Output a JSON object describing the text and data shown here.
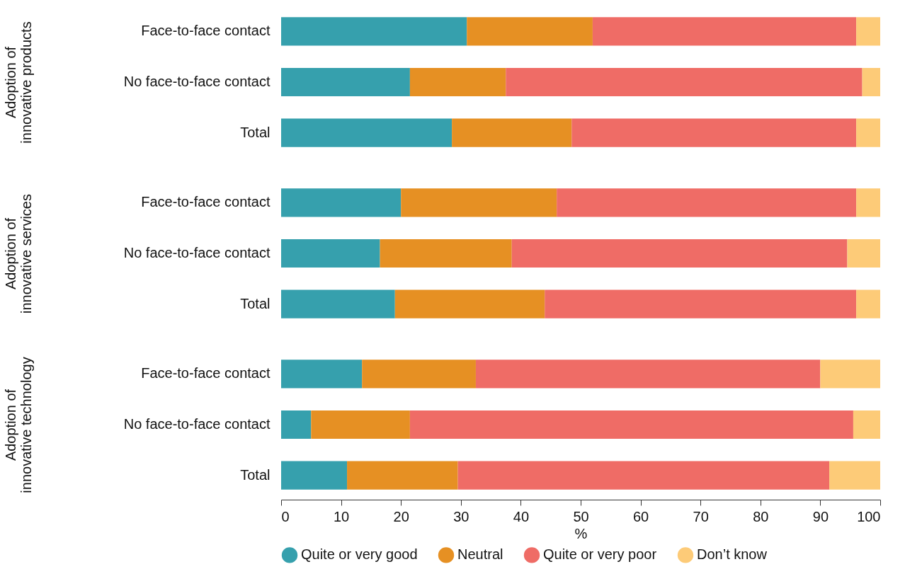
{
  "chart_data": [
    {
      "type": "bar",
      "orientation": "horizontal",
      "stacked": true,
      "ylabel": "Adoption of innovative products",
      "categories": [
        "Face-to-face contact",
        "No face-to-face contact",
        "Total"
      ],
      "xlim": [
        0,
        100
      ],
      "tick_labels": "y",
      "legend": "bottom",
      "series": [
        {
          "name": "Quite or very good",
          "color": "#36a0ad",
          "values": [
            31,
            21.5,
            28.5
          ]
        },
        {
          "name": "Neutral",
          "color": "#e69023",
          "values": [
            21,
            16,
            20
          ]
        },
        {
          "name": "Quite or very poor",
          "color": "#ef6c66",
          "values": [
            44,
            59.5,
            47.5
          ]
        },
        {
          "name": "Don’t know",
          "color": "#fdcb78",
          "values": [
            4,
            3,
            4
          ]
        }
      ]
    },
    {
      "type": "bar",
      "orientation": "horizontal",
      "stacked": true,
      "ylabel": "Adoption of innovative services",
      "categories": [
        "Face-to-face contact",
        "No face-to-face contact",
        "Total"
      ],
      "xlim": [
        0,
        100
      ],
      "tick_labels": "y",
      "series": [
        {
          "name": "Quite or very good",
          "color": "#36a0ad",
          "values": [
            20,
            16.5,
            19
          ]
        },
        {
          "name": "Neutral",
          "color": "#e69023",
          "values": [
            26,
            22,
            25
          ]
        },
        {
          "name": "Quite or very poor",
          "color": "#ef6c66",
          "values": [
            50,
            56,
            52
          ]
        },
        {
          "name": "Don’t know",
          "color": "#fdcb78",
          "values": [
            4,
            5.5,
            4
          ]
        }
      ]
    },
    {
      "type": "bar",
      "orientation": "horizontal",
      "stacked": true,
      "ylabel": "Adoption of innovative technology",
      "xlabel": "%",
      "categories": [
        "Face-to-face contact",
        "No face-to-face contact",
        "Total"
      ],
      "xlim": [
        0,
        100
      ],
      "xticks": [
        0,
        10,
        20,
        30,
        40,
        50,
        60,
        70,
        80,
        90,
        100
      ],
      "series": [
        {
          "name": "Quite or very good",
          "color": "#36a0ad",
          "values": [
            13.5,
            5,
            11
          ]
        },
        {
          "name": "Neutral",
          "color": "#e69023",
          "values": [
            19,
            16.5,
            18.5
          ]
        },
        {
          "name": "Quite or very poor",
          "color": "#ef6c66",
          "values": [
            57.5,
            74,
            62
          ]
        },
        {
          "name": "Don’t know",
          "color": "#fdcb78",
          "values": [
            10,
            4.5,
            8.5
          ]
        }
      ]
    }
  ]
}
